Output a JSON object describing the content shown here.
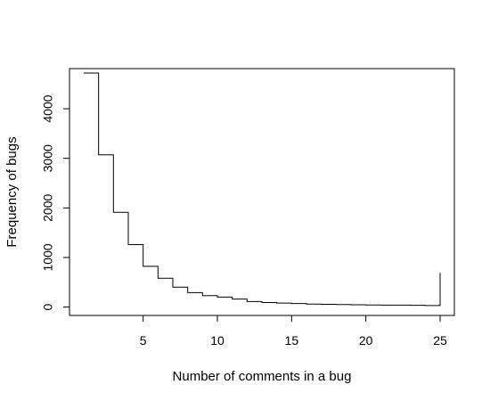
{
  "chart_data": {
    "type": "line",
    "step": true,
    "title": "",
    "xlabel": "Number of comments in a bug",
    "ylabel": "Frequency of bugs",
    "xlim": [
      0.04,
      25.96
    ],
    "ylim": [
      -170,
      4810
    ],
    "x_ticks": [
      5,
      10,
      15,
      20,
      25
    ],
    "y_ticks": [
      0,
      1000,
      2000,
      3000,
      4000
    ],
    "grid": false,
    "legend": "none",
    "line_color": "#000000",
    "series": [
      {
        "x": [
          1,
          2,
          3,
          4,
          5,
          6,
          7,
          8,
          9,
          10,
          11,
          12,
          13,
          14,
          15,
          16,
          17,
          18,
          19,
          20,
          21,
          22,
          23,
          24,
          25
        ],
        "values": [
          4720,
          3070,
          1910,
          1260,
          820,
          580,
          400,
          290,
          230,
          200,
          160,
          110,
          90,
          80,
          70,
          60,
          55,
          50,
          45,
          42,
          40,
          38,
          35,
          30,
          690
        ]
      }
    ]
  }
}
